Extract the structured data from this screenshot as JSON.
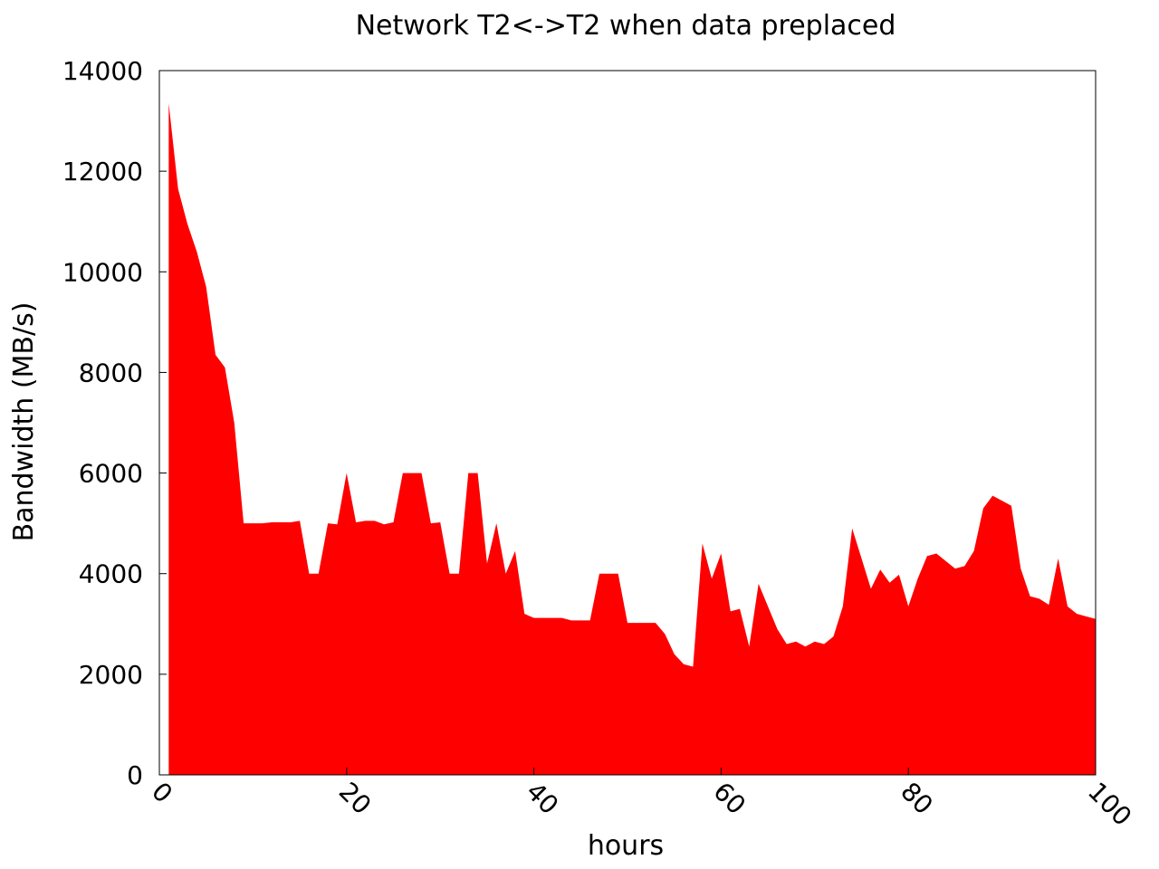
{
  "chart_data": {
    "type": "area",
    "title": "Network T2<->T2 when data preplaced",
    "xlabel": "hours",
    "ylabel": "Bandwidth (MB/s)",
    "xlim": [
      0,
      100
    ],
    "ylim": [
      0,
      14000
    ],
    "xticks": [
      "0",
      "20",
      "40",
      "60",
      "80",
      "100"
    ],
    "yticks": [
      "0",
      "2000",
      "4000",
      "6000",
      "8000",
      "10000",
      "12000",
      "14000"
    ],
    "fill_color": "#ff0000",
    "grid": false,
    "series": [
      {
        "x": [
          1,
          2,
          3,
          4,
          5,
          6,
          7,
          8,
          9,
          10,
          11,
          12,
          13,
          14,
          15,
          16,
          17,
          18,
          19,
          20,
          21,
          22,
          23,
          24,
          25,
          26,
          27,
          28,
          29,
          30,
          31,
          32,
          33,
          34,
          35,
          36,
          37,
          38,
          39,
          40,
          41,
          42,
          43,
          44,
          45,
          46,
          47,
          48,
          49,
          50,
          51,
          52,
          53,
          54,
          55,
          56,
          57,
          58,
          59,
          60,
          61,
          62,
          63,
          64,
          65,
          66,
          67,
          68,
          69,
          70,
          71,
          72,
          73,
          74,
          75,
          76,
          77,
          78,
          79,
          80,
          81,
          82,
          83,
          84,
          85,
          86,
          87,
          88,
          89,
          90,
          91,
          92,
          93,
          94,
          95,
          96,
          97,
          98,
          99,
          100
        ],
        "values": [
          13350,
          11650,
          10950,
          10400,
          9700,
          8350,
          8100,
          7000,
          5000,
          5000,
          5000,
          5020,
          5020,
          5020,
          5050,
          4000,
          4000,
          5000,
          4980,
          6000,
          5020,
          5050,
          5050,
          4980,
          5020,
          6000,
          6000,
          6000,
          5000,
          5020,
          4000,
          4000,
          6000,
          6000,
          4200,
          5000,
          4000,
          4450,
          3200,
          3120,
          3120,
          3120,
          3120,
          3070,
          3070,
          3070,
          4000,
          4000,
          4000,
          3020,
          3020,
          3020,
          3020,
          2800,
          2400,
          2200,
          2150,
          4600,
          3900,
          4400,
          3250,
          3300,
          2550,
          3800,
          3350,
          2900,
          2600,
          2650,
          2550,
          2650,
          2600,
          2750,
          3350,
          4900,
          4300,
          3700,
          4080,
          3820,
          3980,
          3350,
          3900,
          4350,
          4400,
          4250,
          4100,
          4150,
          4450,
          5300,
          5550,
          5450,
          5350,
          4100,
          3550,
          3500,
          3380,
          4300,
          3350,
          3200,
          3150,
          3100
        ]
      }
    ]
  }
}
